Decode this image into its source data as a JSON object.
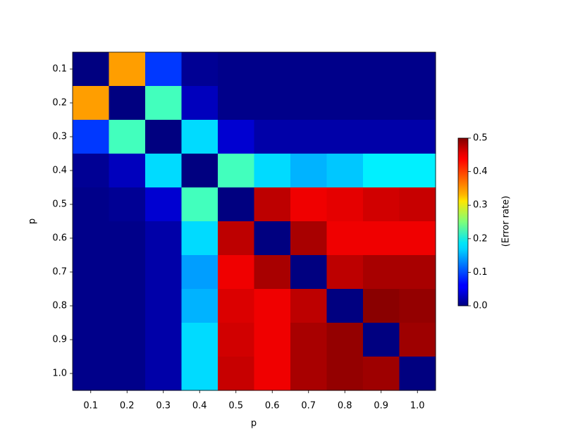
{
  "chart_data": {
    "type": "heatmap",
    "x": [
      "0.1",
      "0.2",
      "0.3",
      "0.4",
      "0.5",
      "0.6",
      "0.7",
      "0.8",
      "0.9",
      "1.0"
    ],
    "y": [
      "0.1",
      "0.2",
      "0.3",
      "0.4",
      "0.5",
      "0.6",
      "0.7",
      "0.8",
      "0.9",
      "1.0"
    ],
    "xlabel": "p",
    "ylabel": "p",
    "colorbar_label": "(Error rate)",
    "colormap": "jet",
    "clim": [
      0,
      0.5
    ],
    "cticks": [
      {
        "value": 0,
        "label": "0.0"
      },
      0.1,
      0.2,
      0.3,
      0.4,
      0.5
    ],
    "z": [
      [
        0,
        0.36,
        0.09,
        0.01,
        0.005,
        0.005,
        0.005,
        0.005,
        0.005,
        0.005
      ],
      [
        0.36,
        0,
        0.22,
        0.03,
        0.005,
        0.005,
        0.005,
        0.005,
        0.005,
        0.005
      ],
      [
        0.09,
        0.22,
        0,
        0.17,
        0.04,
        0.02,
        0.02,
        0.02,
        0.02,
        0.02
      ],
      [
        0.01,
        0.03,
        0.17,
        0,
        0.22,
        0.17,
        0.15,
        0.16,
        0.18,
        0.18
      ],
      [
        0.005,
        0.01,
        0.04,
        0.22,
        0,
        0.47,
        0.445,
        0.45,
        0.46,
        0.465
      ],
      [
        0.005,
        0.005,
        0.02,
        0.17,
        0.47,
        0,
        0.48,
        0.445,
        0.445,
        0.445
      ],
      [
        0.005,
        0.005,
        0.02,
        0.14,
        0.445,
        0.48,
        0,
        0.47,
        0.48,
        0.48
      ],
      [
        0.005,
        0.005,
        0.02,
        0.15,
        0.455,
        0.445,
        0.47,
        0,
        0.495,
        0.49
      ],
      [
        0.005,
        0.005,
        0.02,
        0.17,
        0.46,
        0.445,
        0.48,
        0.49,
        0,
        0.485
      ],
      [
        0.005,
        0.005,
        0.02,
        0.17,
        0.465,
        0.445,
        0.48,
        0.49,
        0.485,
        0
      ]
    ]
  }
}
